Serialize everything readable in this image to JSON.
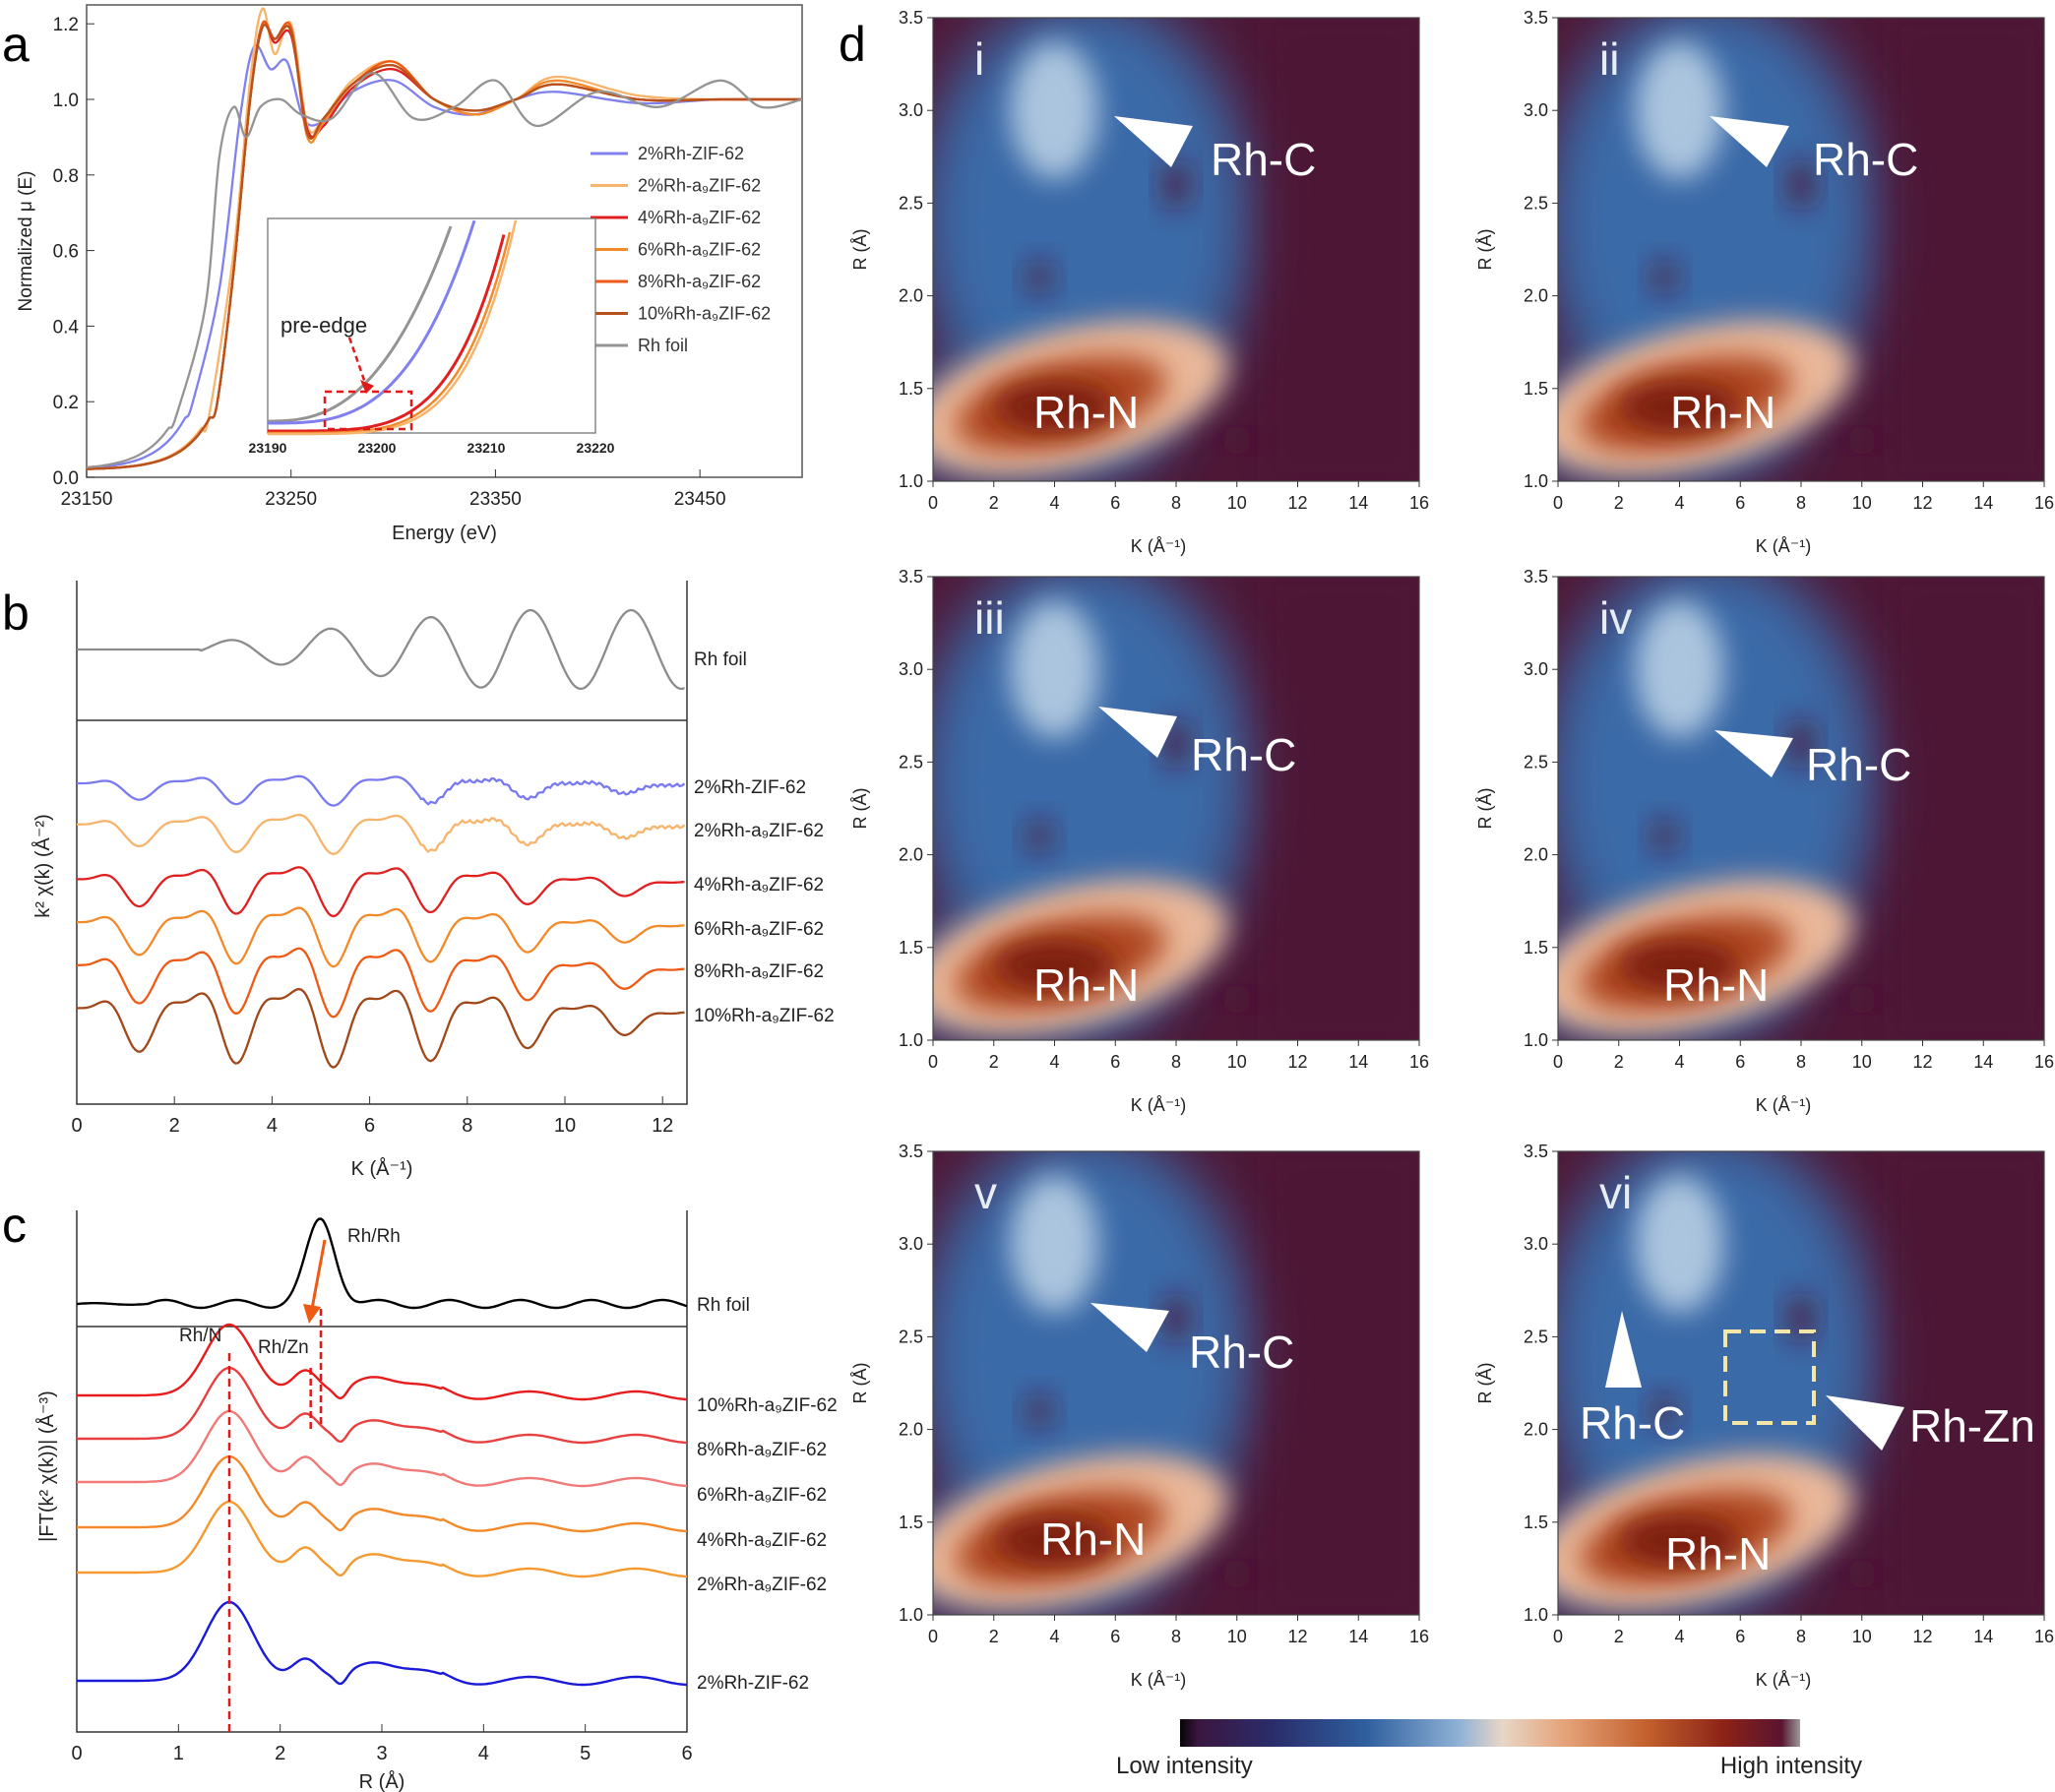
{
  "figure": {
    "panel_letters": [
      "a",
      "b",
      "c",
      "d"
    ]
  },
  "chart_data": [
    {
      "id": "a",
      "type": "line",
      "xlabel": "Energy (eV)",
      "ylabel": "Normalized μ (E)",
      "xlim": [
        23150,
        23500
      ],
      "ylim": [
        0.0,
        1.25
      ],
      "xticks": [
        23150,
        23250,
        23350,
        23450
      ],
      "yticks": [
        0.0,
        0.2,
        0.4,
        0.6,
        0.8,
        1.0,
        1.2
      ],
      "legend_placement": "right",
      "series": [
        {
          "name": "2%Rh-ZIF-62",
          "color": "#8080ee",
          "edge": 23210,
          "x": [
            23215,
            23225,
            23232,
            23240,
            23248,
            23256,
            23265,
            23280,
            23300,
            23320,
            23340,
            23360,
            23380,
            23420,
            23460,
            23500
          ],
          "y": [
            0.5,
            0.95,
            1.14,
            1.08,
            1.1,
            0.95,
            0.94,
            1.02,
            1.05,
            0.98,
            0.96,
            1.0,
            1.02,
            0.99,
            1.0,
            1.0
          ]
        },
        {
          "name": "2%Rh-a₉ZIF-62",
          "color": "#f7b46c",
          "edge": 23221,
          "x": [
            23222,
            23230,
            23236,
            23242,
            23250,
            23258,
            23266,
            23280,
            23300,
            23320,
            23340,
            23360,
            23380,
            23420,
            23460,
            23500
          ],
          "y": [
            0.6,
            1.05,
            1.24,
            1.12,
            1.2,
            0.93,
            0.95,
            1.05,
            1.1,
            1.0,
            0.96,
            1.0,
            1.06,
            1.01,
            1.0,
            1.0
          ]
        },
        {
          "name": "4%Rh-a₉ZIF-62",
          "color": "#e02020",
          "edge": 23222,
          "x": [
            23222,
            23230,
            23236,
            23242,
            23250,
            23258,
            23266,
            23280,
            23300,
            23320,
            23340,
            23360,
            23380,
            23420,
            23460,
            23500
          ],
          "y": [
            0.55,
            1.0,
            1.2,
            1.15,
            1.17,
            0.92,
            0.93,
            1.03,
            1.08,
            1.0,
            0.96,
            1.0,
            1.04,
            1.0,
            1.0,
            1.0
          ]
        },
        {
          "name": "6%Rh-a₉ZIF-62",
          "color": "#f28a2a",
          "edge": 23222,
          "x": [
            23222,
            23230,
            23236,
            23242,
            23250,
            23258,
            23266,
            23280,
            23300,
            23320,
            23340,
            23360,
            23380,
            23420,
            23460,
            23500
          ],
          "y": [
            0.55,
            1.0,
            1.2,
            1.16,
            1.18,
            0.9,
            0.94,
            1.04,
            1.09,
            1.0,
            0.96,
            1.0,
            1.05,
            1.0,
            1.0,
            1.0
          ]
        },
        {
          "name": "8%Rh-a₉ZIF-62",
          "color": "#ee5a14",
          "edge": 23222,
          "x": [
            23222,
            23230,
            23236,
            23242,
            23250,
            23258,
            23266,
            23280,
            23300,
            23320,
            23340,
            23360,
            23380,
            23420,
            23460,
            23500
          ],
          "y": [
            0.55,
            1.0,
            1.2,
            1.16,
            1.19,
            0.91,
            0.95,
            1.04,
            1.1,
            1.0,
            0.97,
            1.0,
            1.04,
            1.0,
            1.0,
            1.0
          ]
        },
        {
          "name": "10%Rh-a₉ZIF-62",
          "color": "#b8521c",
          "edge": 23222,
          "x": [
            23222,
            23230,
            23236,
            23242,
            23250,
            23258,
            23266,
            23280,
            23300,
            23320,
            23340,
            23360,
            23380,
            23420,
            23460,
            23500
          ],
          "y": [
            0.55,
            1.0,
            1.19,
            1.16,
            1.18,
            0.91,
            0.95,
            1.04,
            1.09,
            1.0,
            0.97,
            1.0,
            1.04,
            1.0,
            1.0,
            1.0
          ]
        },
        {
          "name": "Rh foil",
          "color": "#949494",
          "edge": 23205,
          "x": [
            23208,
            23215,
            23222,
            23228,
            23235,
            23245,
            23255,
            23270,
            23290,
            23310,
            23330,
            23350,
            23370,
            23400,
            23430,
            23460,
            23480,
            23500
          ],
          "y": [
            0.45,
            0.85,
            0.98,
            0.9,
            0.98,
            1.0,
            0.96,
            0.95,
            1.07,
            0.95,
            0.98,
            1.05,
            0.93,
            1.02,
            0.98,
            1.05,
            0.98,
            1.0
          ]
        }
      ],
      "inset": {
        "xlim": [
          23190,
          23220
        ],
        "xticks": [
          23190,
          23200,
          23210,
          23220
        ],
        "annotation": "pre-edge"
      }
    },
    {
      "id": "b",
      "type": "line",
      "xlabel": "K (Å⁻¹)",
      "ylabel": "k² χ(k) (Å⁻²)",
      "xlim": [
        0,
        12.5
      ],
      "xticks": [
        0,
        2,
        4,
        6,
        8,
        10,
        12
      ],
      "series": [
        {
          "name": "Rh foil",
          "color": "#8c8c8c",
          "offset": 0
        },
        {
          "name": "2%Rh-ZIF-62",
          "color": "#7a7af0",
          "offset": 1
        },
        {
          "name": "2%Rh-a₉ZIF-62",
          "color": "#f7b46c",
          "offset": 2
        },
        {
          "name": "4%Rh-a₉ZIF-62",
          "color": "#e02020",
          "offset": 3
        },
        {
          "name": "6%Rh-a₉ZIF-62",
          "color": "#f28a2a",
          "offset": 4
        },
        {
          "name": "8%Rh-a₉ZIF-62",
          "color": "#ee5a14",
          "offset": 5
        },
        {
          "name": "10%Rh-a₉ZIF-62",
          "color": "#a0481a",
          "offset": 6
        }
      ]
    },
    {
      "id": "c",
      "type": "line",
      "xlabel": "R (Å)",
      "ylabel": "|FT(k² χ(k))| (Å⁻³)",
      "xlim": [
        0,
        6
      ],
      "xticks": [
        0,
        1,
        2,
        3,
        4,
        5,
        6
      ],
      "annotations": [
        "Rh/Rh",
        "Rh/N",
        "Rh/Zn"
      ],
      "series": [
        {
          "name": "Rh foil",
          "color": "#000000",
          "peak_r": 2.4
        },
        {
          "name": "10%Rh-a₉ZIF-62",
          "color": "#e81c1c",
          "peak_r": 1.5
        },
        {
          "name": "8%Rh-a₉ZIF-62",
          "color": "#e84040",
          "peak_r": 1.5
        },
        {
          "name": "6%Rh-a₉ZIF-62",
          "color": "#f07a78",
          "peak_r": 1.5
        },
        {
          "name": "4%Rh-a₉ZIF-62",
          "color": "#f28a2a",
          "peak_r": 1.5
        },
        {
          "name": "2%Rh-a₉ZIF-62",
          "color": "#f49a30",
          "peak_r": 1.5
        },
        {
          "name": "2%Rh-ZIF-62",
          "color": "#1a1ad8",
          "peak_r": 1.5
        }
      ]
    },
    {
      "id": "d",
      "type": "heatmap",
      "xlabel": "K (Å⁻¹)",
      "ylabel": "R (Å)",
      "xlim": [
        0,
        16
      ],
      "ylim": [
        1.0,
        3.5
      ],
      "xticks": [
        0,
        2,
        4,
        6,
        8,
        10,
        12,
        14,
        16
      ],
      "yticks": [
        1.0,
        1.5,
        2.0,
        2.5,
        3.0,
        3.5
      ],
      "colorbar": {
        "low_label": "Low intensity",
        "high_label": "High intensity"
      },
      "panels": [
        {
          "roman": "i",
          "labels": [
            "Rh-C",
            "Rh-N"
          ]
        },
        {
          "roman": "ii",
          "labels": [
            "Rh-C",
            "Rh-N"
          ]
        },
        {
          "roman": "iii",
          "labels": [
            "Rh-C",
            "Rh-N"
          ]
        },
        {
          "roman": "iv",
          "labels": [
            "Rh-C",
            "Rh-N"
          ]
        },
        {
          "roman": "v",
          "labels": [
            "Rh-C",
            "Rh-N"
          ]
        },
        {
          "roman": "vi",
          "labels": [
            "Rh-C",
            "Rh-Zn",
            "Rh-N"
          ]
        }
      ]
    }
  ],
  "colors": {
    "heat_dark": "#4e1736",
    "heat_blue": "#3a6aa8",
    "heat_light": "#b8cfe4",
    "heat_peak": "#7a1e10"
  }
}
